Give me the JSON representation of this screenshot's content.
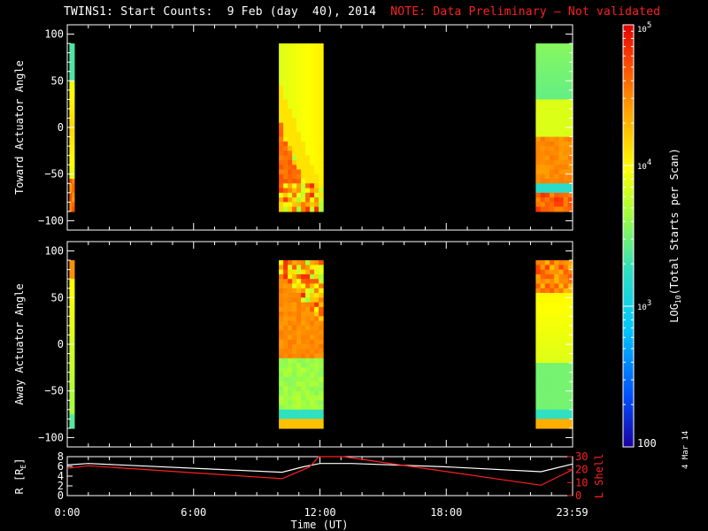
{
  "title": {
    "main": "TWINS1: Start Counts:  9 Feb (day  40), 2014",
    "note": "NOTE: Data Preliminary – Not validated",
    "note_color": "#ff2020"
  },
  "date_stamp": "4 Mar 14",
  "chart_data": [
    {
      "type": "heatmap",
      "name": "toward-panel",
      "ylabel": "Toward Actuator Angle",
      "ylim": [
        -110,
        110
      ],
      "yticks": [
        100,
        50,
        0,
        -50,
        -100
      ],
      "yticks_labels": [
        "100",
        "50",
        "0",
        "−50",
        "−100"
      ],
      "xlim": [
        0,
        24
      ],
      "angle_range": [
        -90,
        90
      ],
      "data_blocks_hours": [
        [
          0.1,
          0.33
        ],
        [
          10.05,
          12.15
        ],
        [
          22.25,
          24.0
        ]
      ]
    },
    {
      "type": "heatmap",
      "name": "away-panel",
      "ylabel": "Away Actuator Angle",
      "ylim": [
        -110,
        110
      ],
      "yticks": [
        100,
        50,
        0,
        -50,
        -100
      ],
      "yticks_labels": [
        "100",
        "50",
        "0",
        "−50",
        "−100"
      ],
      "xlim": [
        0,
        24
      ],
      "angle_range": [
        -90,
        90
      ],
      "data_blocks_hours": [
        [
          0.1,
          0.33
        ],
        [
          10.05,
          12.15
        ],
        [
          22.25,
          24.0
        ]
      ]
    },
    {
      "type": "line",
      "name": "orbit-panel",
      "ylabel_left": "R [R",
      "ylabel_left_sub": "E",
      "ylabel_left_end": "]",
      "ylim_left": [
        0,
        8
      ],
      "yticks_left": [
        "8",
        "6",
        "4",
        "2",
        "0"
      ],
      "ylabel_right": "L Shell",
      "ylim_right": [
        0,
        30
      ],
      "yticks_right": [
        "30",
        "20",
        "10",
        "0"
      ],
      "xlim": [
        0,
        24
      ],
      "xticks": [
        0,
        6,
        12,
        18,
        23.98
      ],
      "xtick_labels": [
        "0:00",
        "6:00",
        "12:00",
        "18:00",
        "23:59"
      ],
      "xlabel": "Time (UT)",
      "series": [
        {
          "color": "#ffffff",
          "x": [
            0,
            1,
            10.2,
            11.2,
            12.0,
            13.5,
            18.0,
            22.5,
            24.0
          ],
          "y": [
            6.3,
            6.6,
            4.8,
            5.9,
            6.6,
            6.6,
            5.9,
            4.9,
            6.5
          ]
        },
        {
          "color": "#ff2020",
          "x": [
            0,
            1,
            10.2,
            11.5,
            11.95,
            12.0,
            13.1,
            22.5,
            24.0
          ],
          "y_right": [
            21,
            23,
            13,
            22,
            30,
            30,
            30,
            8,
            20
          ]
        }
      ]
    }
  ],
  "colorbar": {
    "label": "LOG",
    "label_sub": "10",
    "label_end": "(Total Starts per Scan)",
    "ticks": [
      {
        "base": "10",
        "exp": "5",
        "value": 100000
      },
      {
        "base": "10",
        "exp": "4",
        "value": 10000
      },
      {
        "base": "10",
        "exp": "3",
        "value": 1000
      },
      {
        "base": "100",
        "exp": "",
        "value": 100
      }
    ],
    "range": [
      100,
      100000
    ]
  }
}
